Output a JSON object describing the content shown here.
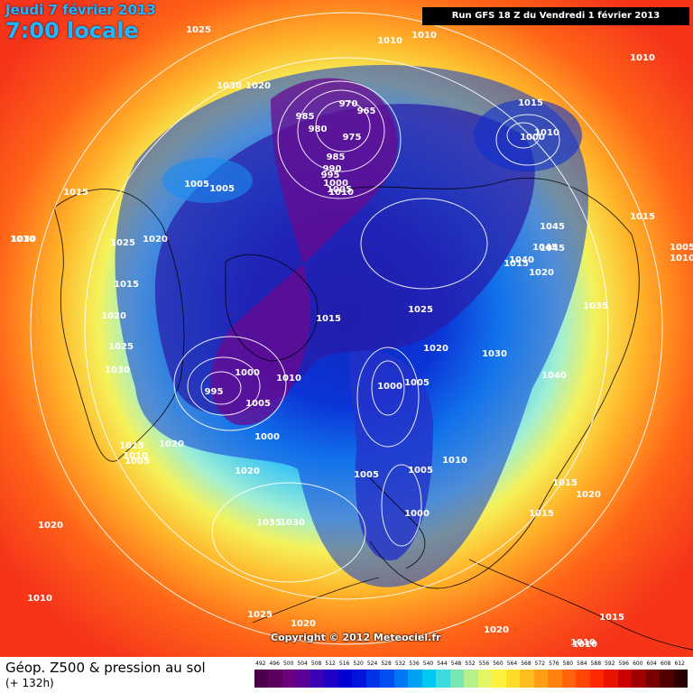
{
  "header": {
    "date": "Jeudi 7 février 2013",
    "local_time": "7:00 locale",
    "run_info": "Run GFS 18 Z du Vendredi 1 février 2013"
  },
  "map": {
    "projection": "polar stereographic (north pole)",
    "field": "Z500 geopotential (color) + sea level pressure isobars (white)",
    "pressure_labels": [
      "1025",
      "1010",
      "1010",
      "1010",
      "1030",
      "1020",
      "985",
      "970",
      "965",
      "980",
      "975",
      "985",
      "990",
      "995",
      "1000",
      "1005",
      "1010",
      "1000",
      "1015",
      "1010",
      "1005",
      "1005",
      "1015",
      "1020",
      "1025",
      "1030",
      "1010",
      "1015",
      "1045",
      "1045",
      "1015",
      "1005",
      "1010",
      "1020",
      "1015",
      "1045",
      "1040",
      "1020",
      "1035",
      "1015",
      "1025",
      "1020",
      "1030",
      "1040",
      "1025",
      "1030",
      "995",
      "1000",
      "1005",
      "1010",
      "1000",
      "1005",
      "1000",
      "1020",
      "1015",
      "1010",
      "1005",
      "1010",
      "1020",
      "1005",
      "1005",
      "1015",
      "1020",
      "1015",
      "1020",
      "1000",
      "1035",
      "1030",
      "1010",
      "1025",
      "1020",
      "1015",
      "1010",
      "1020",
      "1010"
    ],
    "copyright": "Copyright © 2012 Meteociel.fr"
  },
  "footer": {
    "title": "Géop. Z500 & pression au sol",
    "subtitle": "(+ 132h)"
  },
  "scale": {
    "values": [
      "492",
      "496",
      "500",
      "504",
      "508",
      "512",
      "516",
      "520",
      "524",
      "528",
      "532",
      "536",
      "540",
      "544",
      "548",
      "552",
      "556",
      "560",
      "564",
      "568",
      "572",
      "576",
      "580",
      "584",
      "588",
      "592",
      "596",
      "600",
      "604",
      "608",
      "612"
    ],
    "colors": [
      "#4b004b",
      "#5a005f",
      "#6e0080",
      "#5a0096",
      "#3c00b4",
      "#1e00c8",
      "#0000d2",
      "#0014dc",
      "#0032e6",
      "#0050f0",
      "#0078f5",
      "#00a0f5",
      "#00c8f0",
      "#3cdcdc",
      "#78e6b4",
      "#b4f08c",
      "#e6f564",
      "#fff03c",
      "#ffdc28",
      "#ffbe1e",
      "#ffa014",
      "#ff820f",
      "#ff640a",
      "#ff4605",
      "#ff2800",
      "#e61400",
      "#c80000",
      "#a00000",
      "#780000",
      "#500000",
      "#2d0000"
    ]
  }
}
